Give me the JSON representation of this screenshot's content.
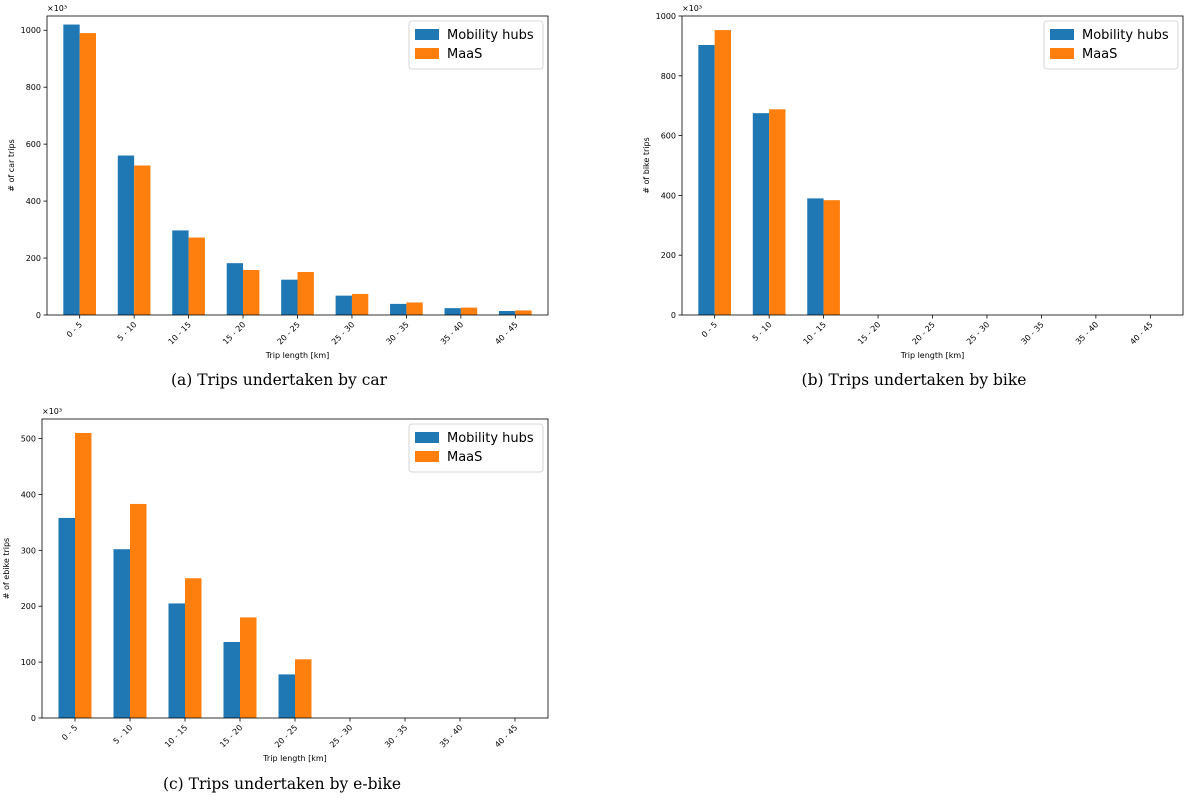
{
  "chart_data": [
    {
      "type": "bar",
      "caption": "(a) Trips undertaken by car",
      "xlabel": "Trip length [km]",
      "ylabel": "# of car trips",
      "scale_label": "×10³",
      "ylim": [
        0,
        1050
      ],
      "yticks": [
        0,
        200,
        400,
        600,
        800,
        1000
      ],
      "categories": [
        "0 - 5",
        "5 - 10",
        "10 - 15",
        "15 - 20",
        "20 - 25",
        "25 - 30",
        "30 - 35",
        "35 - 40",
        "40 - 45"
      ],
      "series": [
        {
          "name": "Mobility hubs",
          "values": [
            1020,
            560,
            297,
            182,
            124,
            68,
            39,
            24,
            14
          ]
        },
        {
          "name": "MaaS",
          "values": [
            990,
            525,
            272,
            158,
            151,
            74,
            44,
            26,
            16
          ]
        }
      ],
      "legend": "top-right"
    },
    {
      "type": "bar",
      "caption": "(b) Trips undertaken by bike",
      "xlabel": "Trip length [km]",
      "ylabel": "# of bike trips",
      "scale_label": "×10³",
      "ylim": [
        0,
        1000
      ],
      "yticks": [
        0,
        200,
        400,
        600,
        800,
        1000
      ],
      "categories": [
        "0 - 5",
        "5 - 10",
        "10 - 15",
        "15 - 20",
        "20 - 25",
        "25 - 30",
        "30 - 35",
        "35 - 40",
        "40 - 45"
      ],
      "series": [
        {
          "name": "Mobility hubs",
          "values": [
            903,
            675,
            390,
            0,
            0,
            0,
            0,
            0,
            0
          ]
        },
        {
          "name": "MaaS",
          "values": [
            953,
            688,
            384,
            0,
            0,
            0,
            0,
            0,
            0
          ]
        }
      ],
      "legend": "top-right"
    },
    {
      "type": "bar",
      "caption": "(c) Trips undertaken by e-bike",
      "xlabel": "Trip length [km]",
      "ylabel": "# of ebike trips",
      "scale_label": "×10³",
      "ylim": [
        0,
        535
      ],
      "yticks": [
        0,
        100,
        200,
        300,
        400,
        500
      ],
      "categories": [
        "0 - 5",
        "5 - 10",
        "10 - 15",
        "15 - 20",
        "20 - 25",
        "25 - 30",
        "30 - 35",
        "35 - 40",
        "40 - 45"
      ],
      "series": [
        {
          "name": "Mobility hubs",
          "values": [
            358,
            302,
            205,
            136,
            78,
            0,
            0,
            0,
            0
          ]
        },
        {
          "name": "MaaS",
          "values": [
            510,
            383,
            250,
            180,
            105,
            0,
            0,
            0,
            0
          ]
        }
      ],
      "legend": "top-right"
    }
  ],
  "colors": {
    "Mobility hubs": "#1f77b4",
    "MaaS": "#ff7f0e"
  }
}
